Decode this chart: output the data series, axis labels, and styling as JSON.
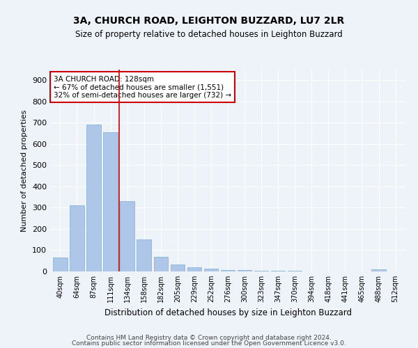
{
  "title1": "3A, CHURCH ROAD, LEIGHTON BUZZARD, LU7 2LR",
  "title2": "Size of property relative to detached houses in Leighton Buzzard",
  "xlabel": "Distribution of detached houses by size in Leighton Buzzard",
  "ylabel": "Number of detached properties",
  "categories": [
    "40sqm",
    "64sqm",
    "87sqm",
    "111sqm",
    "134sqm",
    "158sqm",
    "182sqm",
    "205sqm",
    "229sqm",
    "252sqm",
    "276sqm",
    "300sqm",
    "323sqm",
    "347sqm",
    "370sqm",
    "394sqm",
    "418sqm",
    "441sqm",
    "465sqm",
    "488sqm",
    "512sqm"
  ],
  "values": [
    65,
    310,
    690,
    655,
    330,
    150,
    68,
    33,
    20,
    12,
    8,
    5,
    4,
    3,
    2,
    1,
    1,
    0,
    0,
    10,
    0
  ],
  "bar_color": "#aec6e8",
  "bar_edge_color": "#7bafd4",
  "vline_x": 3.5,
  "vline_color": "#cc0000",
  "annotation_text": "3A CHURCH ROAD: 128sqm\n← 67% of detached houses are smaller (1,551)\n32% of semi-detached houses are larger (732) →",
  "annotation_box_color": "#ffffff",
  "annotation_box_edge": "#cc0000",
  "bg_color": "#eef2f9",
  "grid_color": "#ffffff",
  "ylim": [
    0,
    950
  ],
  "yticks": [
    0,
    100,
    200,
    300,
    400,
    500,
    600,
    700,
    800,
    900
  ],
  "footer1": "Contains HM Land Registry data © Crown copyright and database right 2024.",
  "footer2": "Contains public sector information licensed under the Open Government Licence v3.0."
}
